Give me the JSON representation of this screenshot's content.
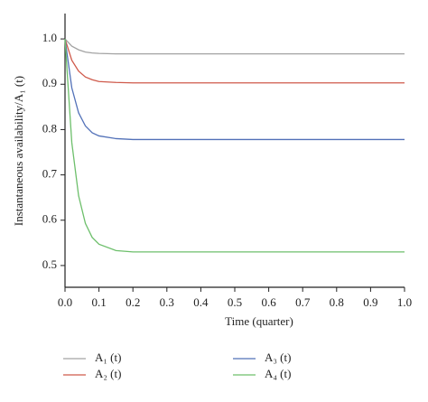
{
  "chart_data": {
    "type": "line",
    "x_label": "Time (quarter)",
    "y_label": "Instantaneous availability/A₁ (t)",
    "x": [
      0,
      0.02,
      0.04,
      0.06,
      0.08,
      0.1,
      0.15,
      0.2,
      0.3,
      0.4,
      0.5,
      0.6,
      0.7,
      0.8,
      0.9,
      1.0
    ],
    "series": [
      {
        "name": "A₁ (t)",
        "color": "#a3a3a3",
        "values": [
          1.0,
          0.984,
          0.976,
          0.971,
          0.969,
          0.968,
          0.967,
          0.967,
          0.967,
          0.967,
          0.967,
          0.967,
          0.967,
          0.967,
          0.967,
          0.967
        ]
      },
      {
        "name": "A₂ (t)",
        "color": "#cf5a4b",
        "values": [
          1.0,
          0.953,
          0.929,
          0.916,
          0.91,
          0.906,
          0.904,
          0.903,
          0.903,
          0.903,
          0.903,
          0.903,
          0.903,
          0.903,
          0.903,
          0.903
        ]
      },
      {
        "name": "A₃ (t)",
        "color": "#5271b8",
        "values": [
          1.0,
          0.892,
          0.837,
          0.808,
          0.793,
          0.786,
          0.78,
          0.778,
          0.778,
          0.778,
          0.778,
          0.778,
          0.778,
          0.778,
          0.778,
          0.778
        ]
      },
      {
        "name": "A₄ (t)",
        "color": "#6dbf6b",
        "values": [
          1.0,
          0.771,
          0.654,
          0.593,
          0.562,
          0.547,
          0.533,
          0.53,
          0.53,
          0.53,
          0.53,
          0.53,
          0.53,
          0.53,
          0.53,
          0.53
        ]
      }
    ],
    "xlim": [
      0,
      1.0
    ],
    "ylim": [
      0.452,
      1.056
    ],
    "xticks": [
      {
        "value": 0,
        "label": "0.0"
      },
      0.1,
      0.2,
      0.3,
      0.4,
      0.5,
      0.6,
      0.7,
      0.8,
      0.9,
      {
        "value": 1.0,
        "label": "1.0"
      }
    ],
    "yticks": [
      0.5,
      0.6,
      0.7,
      0.8,
      0.9,
      {
        "value": 1.0,
        "label": "1.0"
      }
    ],
    "grid": false,
    "legend": "bottom"
  }
}
